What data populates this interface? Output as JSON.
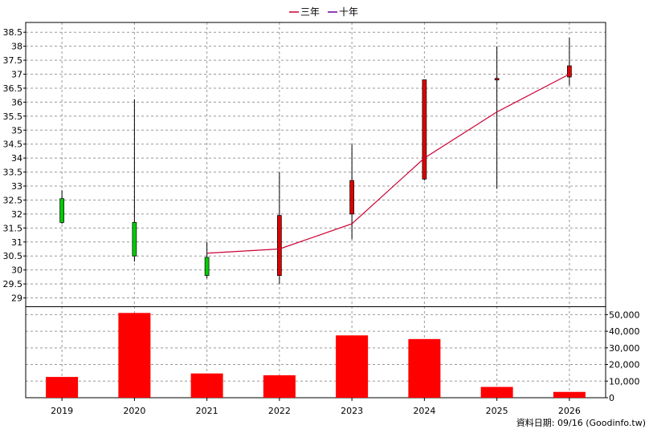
{
  "chart_data": {
    "type": "candlestick+line+bar",
    "legend": [
      {
        "name": "三年",
        "color": "#cc0033"
      },
      {
        "name": "十年",
        "color": "#660099"
      }
    ],
    "legend_position": "top-center",
    "categories": [
      "2019",
      "2020",
      "2021",
      "2022",
      "2023",
      "2024",
      "2025",
      "2026"
    ],
    "price_axis": {
      "ylim": [
        28.7,
        38.85
      ],
      "ticks": [
        "29",
        "29.5",
        "30",
        "30.5",
        "31",
        "31.5",
        "32",
        "32.5",
        "33",
        "33.5",
        "34",
        "34.5",
        "35",
        "35.5",
        "36",
        "36.5",
        "37",
        "37.5",
        "38",
        "38.5"
      ]
    },
    "candles": [
      {
        "x": "2019",
        "open": 32.55,
        "close": 31.7,
        "high": 32.85,
        "low": 31.65,
        "color": "#00cc00"
      },
      {
        "x": "2020",
        "open": 31.7,
        "close": 30.5,
        "high": 36.1,
        "low": 30.3,
        "color": "#00cc00"
      },
      {
        "x": "2021",
        "open": 30.45,
        "close": 29.8,
        "high": 31.0,
        "low": 29.7,
        "color": "#00cc00"
      },
      {
        "x": "2022",
        "open": 29.8,
        "close": 31.95,
        "high": 33.5,
        "low": 29.5,
        "color": "#dd0000"
      },
      {
        "x": "2023",
        "open": 32.0,
        "close": 33.2,
        "high": 34.5,
        "low": 31.1,
        "color": "#dd0000"
      },
      {
        "x": "2024",
        "open": 33.25,
        "close": 36.8,
        "high": 36.8,
        "low": 33.2,
        "color": "#dd0000"
      },
      {
        "x": "2025",
        "open": 36.8,
        "close": 36.85,
        "high": 38.0,
        "low": 32.9,
        "color": "#dd0000"
      },
      {
        "x": "2026",
        "open": 36.9,
        "close": 37.3,
        "high": 38.3,
        "low": 36.6,
        "color": "#dd0000"
      }
    ],
    "line_series": {
      "name": "三年",
      "color": "#cc0033",
      "x": [
        "2021",
        "2022",
        "2023",
        "2024",
        "2025",
        "2026"
      ],
      "values": [
        30.6,
        30.75,
        31.65,
        34.0,
        35.65,
        37.0
      ]
    },
    "volume_axis": {
      "ylim": [
        0,
        55000
      ],
      "ticks": [
        {
          "value": 0,
          "label": "0"
        },
        {
          "value": 10000,
          "label": "10,000"
        },
        {
          "value": 20000,
          "label": "20,000"
        },
        {
          "value": 30000,
          "label": "30,000"
        },
        {
          "value": 40000,
          "label": "40,000"
        },
        {
          "value": 50000,
          "label": "50,000"
        }
      ]
    },
    "volume_bars": {
      "color": "#ff0000",
      "values": [
        12500,
        51000,
        14600,
        13500,
        37500,
        35300,
        6500,
        3500
      ]
    },
    "grid": true
  },
  "credit": "資料日期: 09/16 (Goodinfo.tw)"
}
